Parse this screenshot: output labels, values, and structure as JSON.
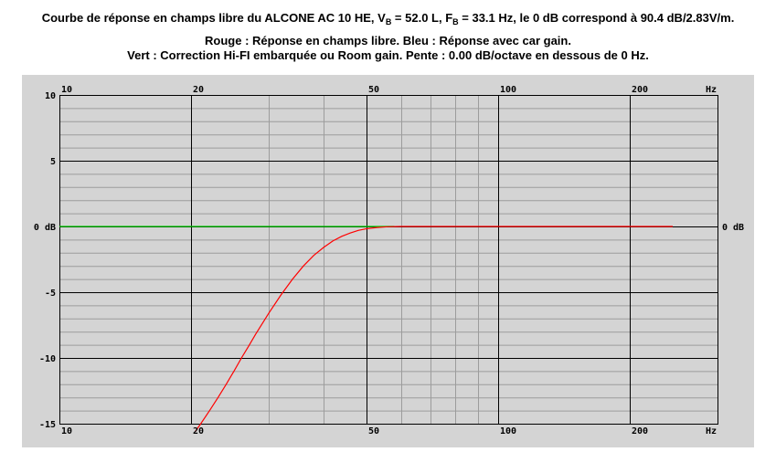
{
  "title": {
    "line1_a": "Courbe de réponse en champs libre du ALCONE AC 10 HE, V",
    "line1_vb_sub": "B",
    "line1_b": " = 52.0 L, F",
    "line1_fb_sub": "B",
    "line1_c": " = 33.1 Hz, le 0 dB correspond à 90.4 dB/2.83V/m.",
    "line2": "Rouge : Réponse en champs libre. Bleu : Réponse avec car gain.",
    "line3": "Vert : Correction Hi-FI embarquée ou Room gain. Pente : 0.00 dB/octave en dessous de 0 Hz."
  },
  "colors": {
    "plot_background": "#d4d4d4",
    "free_field": "#ff0000",
    "correction": "#00cc00",
    "minor_grid": "#9c9c9c",
    "major_grid": "#000000"
  },
  "chart_data": {
    "type": "line",
    "x_scale": "log",
    "xlim": [
      10,
      250
    ],
    "ylim": [
      -15,
      10
    ],
    "x_ticks": [
      {
        "value": 10,
        "label": "10"
      },
      {
        "value": 20,
        "label": "20"
      },
      {
        "value": 50,
        "label": "50"
      },
      {
        "value": 100,
        "label": "100"
      },
      {
        "value": 200,
        "label": "200"
      }
    ],
    "x_unit": "Hz",
    "y_ticks": [
      {
        "value": 10,
        "label": "10"
      },
      {
        "value": 5,
        "label": "5"
      },
      {
        "value": 0,
        "label": "0 dB"
      },
      {
        "value": -5,
        "label": "-5"
      },
      {
        "value": -10,
        "label": "-10"
      },
      {
        "value": -15,
        "label": "-15"
      }
    ],
    "right_label": {
      "value": 0,
      "label": "0 dB"
    },
    "series": [
      {
        "color_key": "correction",
        "x": [
          10,
          58
        ],
        "y": [
          0,
          0
        ]
      },
      {
        "color_key": "free_field",
        "x": [
          20.4,
          21,
          22,
          23,
          24,
          25,
          26,
          27,
          28,
          30,
          32,
          34,
          36,
          38,
          40,
          42,
          44,
          46,
          48,
          50,
          53,
          56,
          60,
          70,
          80,
          100,
          150,
          200,
          250
        ],
        "y": [
          -15.6,
          -15,
          -14.0,
          -13.0,
          -12.0,
          -11.0,
          -10.0,
          -9.1,
          -8.2,
          -6.6,
          -5.2,
          -4.0,
          -3.0,
          -2.2,
          -1.6,
          -1.1,
          -0.75,
          -0.5,
          -0.3,
          -0.18,
          -0.08,
          -0.02,
          0,
          0,
          0,
          0,
          0,
          0,
          0
        ]
      }
    ]
  }
}
